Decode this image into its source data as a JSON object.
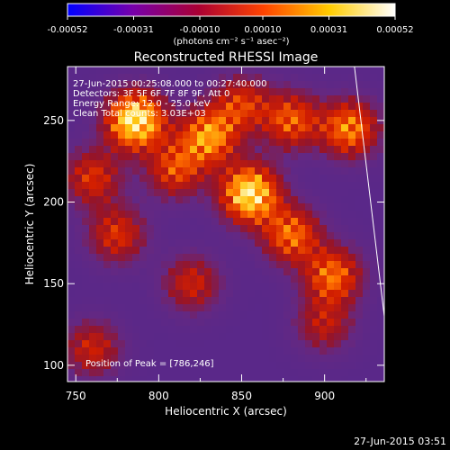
{
  "chart_data": {
    "type": "heatmap",
    "title": "Reconstructed RHESSI Image",
    "xlabel": "Heliocentric X (arcsec)",
    "ylabel": "Heliocentric Y (arcsec)",
    "xlim": [
      745,
      936
    ],
    "ylim": [
      90,
      283
    ],
    "x_ticks": [
      750,
      800,
      850,
      900
    ],
    "y_ticks": [
      100,
      150,
      200,
      250
    ],
    "grid": false,
    "colorbar": {
      "orientation": "horizontal",
      "placement": "top",
      "range": [
        -0.00052,
        0.00052
      ],
      "ticks": [
        "-0.00052",
        "-0.00031",
        "-0.00010",
        "0.00010",
        "0.00031",
        "0.00052"
      ],
      "unit_label": "(photons cm⁻² s⁻¹ asec⁻²)",
      "colormap": [
        "#0000ff",
        "#7700aa",
        "#aa0033",
        "#ff4400",
        "#ffcc00",
        "#ffffff"
      ]
    },
    "annotations": [
      "27-Jun-2015 00:25:08.000 to 00:27:40.000",
      "Detectors: 3F 5F 6F 7F 8F 9F, Att 0",
      "Energy Range: 12.0 - 25.0 keV",
      "Clean    Total counts: 3.03E+03"
    ],
    "peak_label": "Position of Peak = [786,246]",
    "peak": [
      786,
      246
    ],
    "emission_sources": [
      {
        "x": 786,
        "y": 250,
        "relative_intensity": 1.0
      },
      {
        "x": 855,
        "y": 205,
        "relative_intensity": 0.95
      },
      {
        "x": 830,
        "y": 240,
        "relative_intensity": 0.7
      },
      {
        "x": 880,
        "y": 180,
        "relative_intensity": 0.6
      },
      {
        "x": 905,
        "y": 155,
        "relative_intensity": 0.6
      },
      {
        "x": 915,
        "y": 245,
        "relative_intensity": 0.65
      },
      {
        "x": 880,
        "y": 250,
        "relative_intensity": 0.55
      },
      {
        "x": 810,
        "y": 220,
        "relative_intensity": 0.5
      },
      {
        "x": 760,
        "y": 215,
        "relative_intensity": 0.45
      },
      {
        "x": 775,
        "y": 180,
        "relative_intensity": 0.45
      },
      {
        "x": 820,
        "y": 150,
        "relative_intensity": 0.4
      },
      {
        "x": 760,
        "y": 110,
        "relative_intensity": 0.4
      },
      {
        "x": 900,
        "y": 125,
        "relative_intensity": 0.35
      },
      {
        "x": 850,
        "y": 260,
        "relative_intensity": 0.45
      }
    ],
    "limb_line": [
      [
        918,
        283
      ],
      [
        936,
        130
      ]
    ]
  },
  "footer": {
    "timestamp": "27-Jun-2015 03:51"
  }
}
